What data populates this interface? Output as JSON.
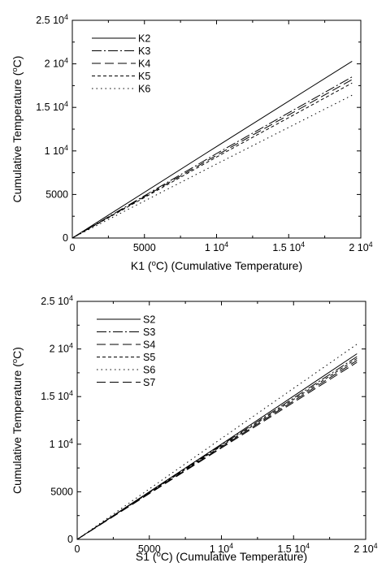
{
  "chart_data": [
    {
      "type": "line",
      "xlabel": "K1 (°C) (Cumulative Temperature)",
      "ylabel": "Cumulative Temperature (°C)",
      "xlim": [
        0,
        20000
      ],
      "ylim": [
        0,
        25000
      ],
      "grid": false,
      "legend": "top-left",
      "x_ticks": [
        {
          "value": 0,
          "label": "0"
        },
        {
          "value": 5000,
          "label": "5000"
        },
        {
          "value": 10000,
          "label": "1 10",
          "exp": "4"
        },
        {
          "value": 15000,
          "label": "1.5 10",
          "exp": "4"
        },
        {
          "value": 20000,
          "label": "2 10",
          "exp": "4"
        }
      ],
      "y_ticks": [
        {
          "value": 0,
          "label": "0"
        },
        {
          "value": 5000,
          "label": "5000"
        },
        {
          "value": 10000,
          "label": "1 10",
          "exp": "4"
        },
        {
          "value": 15000,
          "label": "1.5 10",
          "exp": "4"
        },
        {
          "value": 20000,
          "label": "2 10",
          "exp": "4"
        },
        {
          "value": 25000,
          "label": "2.5 10",
          "exp": "4"
        }
      ],
      "series": [
        {
          "name": "K2",
          "dash": "",
          "x": [
            0,
            10000,
            19400
          ],
          "y": [
            0,
            10500,
            20300
          ]
        },
        {
          "name": "K3",
          "dash": "12 3 2 3",
          "x": [
            0,
            10000,
            19400
          ],
          "y": [
            0,
            9700,
            18500
          ]
        },
        {
          "name": "K4",
          "dash": "11 5",
          "x": [
            0,
            10000,
            19400
          ],
          "y": [
            0,
            9500,
            18200
          ]
        },
        {
          "name": "K5",
          "dash": "4 3",
          "x": [
            0,
            10000,
            19400
          ],
          "y": [
            0,
            9300,
            17800
          ]
        },
        {
          "name": "K6",
          "dash": "1.5 4",
          "x": [
            0,
            10000,
            19400
          ],
          "y": [
            0,
            8500,
            16400
          ]
        }
      ]
    },
    {
      "type": "line",
      "xlabel": "S1 (°C) (Cumulative Temperature)",
      "ylabel": "Cumulative Temperature (°C)",
      "xlim": [
        0,
        20000
      ],
      "ylim": [
        0,
        25000
      ],
      "grid": false,
      "legend": "top-left",
      "x_ticks": [
        {
          "value": 0,
          "label": "0"
        },
        {
          "value": 5000,
          "label": "5000"
        },
        {
          "value": 10000,
          "label": "1 10",
          "exp": "4"
        },
        {
          "value": 15000,
          "label": "1.5 10",
          "exp": "4"
        },
        {
          "value": 20000,
          "label": "2 10",
          "exp": "4"
        }
      ],
      "y_ticks": [
        {
          "value": 0,
          "label": "0"
        },
        {
          "value": 5000,
          "label": "5000"
        },
        {
          "value": 10000,
          "label": "1 10",
          "exp": "4"
        },
        {
          "value": 15000,
          "label": "1.5 10",
          "exp": "4"
        },
        {
          "value": 20000,
          "label": "2 10",
          "exp": "4"
        },
        {
          "value": 25000,
          "label": "2.5 10",
          "exp": "4"
        }
      ],
      "series": [
        {
          "name": "S2",
          "dash": "",
          "x": [
            0,
            10000,
            19400
          ],
          "y": [
            0,
            10000,
            19500
          ]
        },
        {
          "name": "S3",
          "dash": "12 3 2 3",
          "x": [
            0,
            10000,
            19400
          ],
          "y": [
            0,
            9900,
            19200
          ]
        },
        {
          "name": "S4",
          "dash": "11 5",
          "x": [
            0,
            10000,
            19400
          ],
          "y": [
            0,
            9600,
            18600
          ]
        },
        {
          "name": "S5",
          "dash": "4 3",
          "x": [
            0,
            10000,
            19400
          ],
          "y": [
            0,
            9800,
            19000
          ]
        },
        {
          "name": "S6",
          "dash": "1.5 4",
          "x": [
            0,
            10000,
            19400
          ],
          "y": [
            0,
            10600,
            20500
          ]
        },
        {
          "name": "S7",
          "dash": "11 5",
          "x": [
            0,
            10000,
            19400
          ],
          "y": [
            0,
            9700,
            18800
          ]
        }
      ]
    }
  ]
}
